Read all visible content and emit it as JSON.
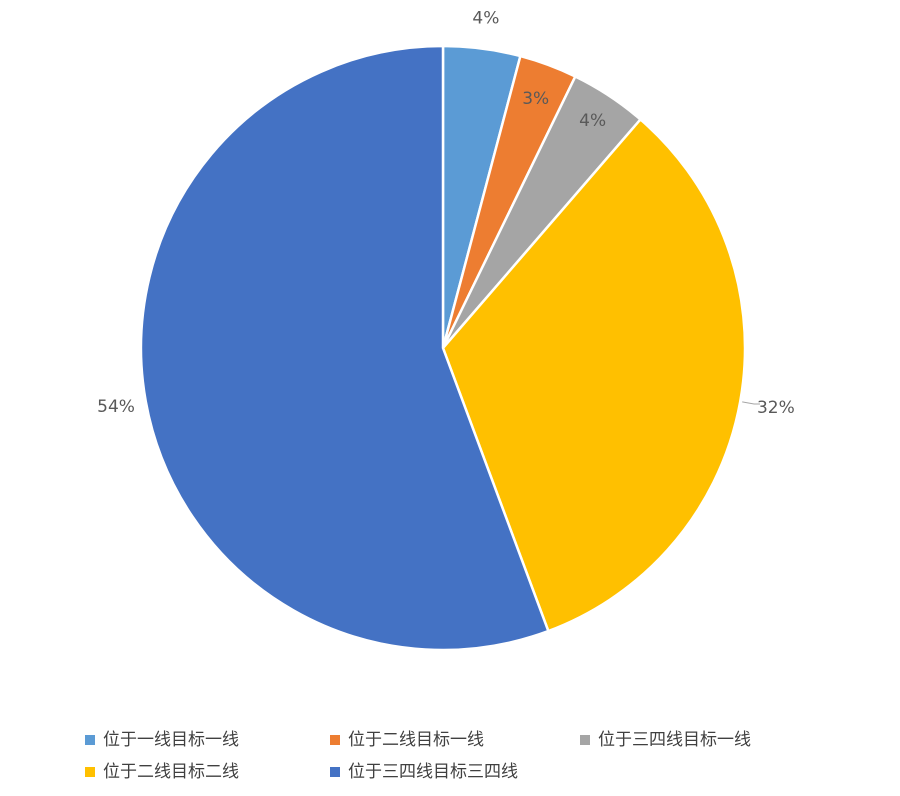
{
  "chart_data": {
    "type": "pie",
    "categories": [
      "位于一线目标一线",
      "位于二线目标一线",
      "位于三四线目标一线",
      "位于二线目标二线",
      "位于三四线目标三四线"
    ],
    "values": [
      4,
      3,
      4,
      32,
      54
    ],
    "value_labels": [
      "4%",
      "3%",
      "4%",
      "32%",
      "54%"
    ],
    "colors": [
      "#5b9bd5",
      "#ed7d31",
      "#a5a5a5",
      "#ffc000",
      "#4472c4"
    ],
    "legend": "bottom"
  }
}
